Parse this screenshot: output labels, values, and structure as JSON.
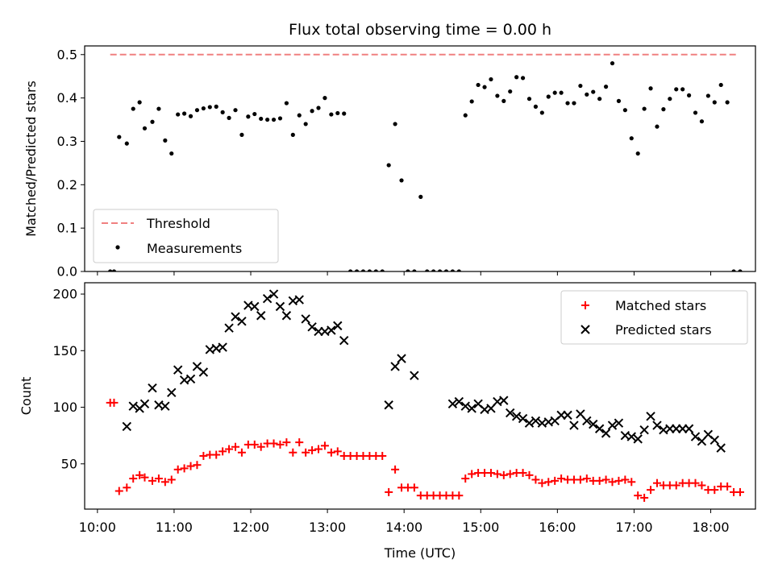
{
  "chart_data": [
    {
      "type": "scatter",
      "title": "Flux total observing time = 0.00 h",
      "xlabel": "",
      "ylabel": "Matched/Predicted stars",
      "ylim": [
        0,
        0.52
      ],
      "xlim": [
        "09:50",
        "18:35"
      ],
      "yticks": [
        0.0,
        0.1,
        0.2,
        0.3,
        0.4,
        0.5
      ],
      "yticklabels": [
        "0.0",
        "0.1",
        "0.2",
        "0.3",
        "0.4",
        "0.5"
      ],
      "grid": false,
      "legend": "lower-left",
      "threshold": {
        "name": "Threshold",
        "value": 0.5,
        "x": [
          "10:10",
          "18:20"
        ],
        "color": "#f08080"
      },
      "series": [
        {
          "name": "Measurements",
          "color": "#000000",
          "marker": "dot",
          "x": [
            "10:10",
            "10:13",
            "10:17",
            "10:23",
            "10:28",
            "10:33",
            "10:37",
            "10:43",
            "10:48",
            "10:53",
            "10:58",
            "11:03",
            "11:08",
            "11:13",
            "11:18",
            "11:23",
            "11:28",
            "11:33",
            "11:38",
            "11:43",
            "11:48",
            "11:53",
            "11:58",
            "12:03",
            "12:08",
            "12:13",
            "12:18",
            "12:23",
            "12:28",
            "12:33",
            "12:38",
            "12:43",
            "12:48",
            "12:53",
            "12:58",
            "13:03",
            "13:08",
            "13:13",
            "13:18",
            "13:23",
            "13:28",
            "13:33",
            "13:38",
            "13:43",
            "13:48",
            "13:53",
            "13:58",
            "14:03",
            "14:08",
            "14:13",
            "14:18",
            "14:23",
            "14:28",
            "14:33",
            "14:38",
            "14:43",
            "14:48",
            "14:53",
            "14:58",
            "15:03",
            "15:08",
            "15:13",
            "15:18",
            "15:23",
            "15:28",
            "15:33",
            "15:38",
            "15:43",
            "15:48",
            "15:53",
            "15:58",
            "16:03",
            "16:08",
            "16:13",
            "16:18",
            "16:23",
            "16:28",
            "16:33",
            "16:38",
            "16:43",
            "16:48",
            "16:53",
            "16:58",
            "17:03",
            "17:08",
            "17:13",
            "17:18",
            "17:23",
            "17:28",
            "17:33",
            "17:38",
            "17:43",
            "17:48",
            "17:53",
            "17:58",
            "18:03",
            "18:08",
            "18:13",
            "18:18",
            "18:23"
          ],
          "y": [
            0,
            0,
            0.31,
            0.295,
            0.375,
            0.39,
            0.33,
            0.345,
            0.375,
            0.302,
            0.272,
            0.362,
            0.364,
            0.358,
            0.372,
            0.376,
            0.379,
            0.38,
            0.367,
            0.354,
            0.372,
            0.315,
            0.357,
            0.363,
            0.352,
            0.35,
            0.35,
            0.353,
            0.388,
            0.315,
            0.36,
            0.34,
            0.37,
            0.377,
            0.4,
            0.362,
            0.365,
            0.364,
            0,
            0,
            0,
            0,
            0,
            0,
            0.245,
            0.34,
            0.21,
            0,
            0,
            0.172,
            0,
            0,
            0,
            0,
            0,
            0,
            0.36,
            0.392,
            0.43,
            0.425,
            0.443,
            0.405,
            0.393,
            0.415,
            0.448,
            0.446,
            0.398,
            0.38,
            0.366,
            0.403,
            0.412,
            0.412,
            0.388,
            0.388,
            0.428,
            0.408,
            0.414,
            0.398,
            0.426,
            0.48,
            0.393,
            0.372,
            0.307,
            0.272,
            0.375,
            0.422,
            0.334,
            0.374,
            0.398,
            0.42,
            0.42,
            0.406,
            0.366,
            0.346,
            0.405,
            0.39,
            0.43,
            0.39,
            0,
            0
          ]
        }
      ]
    },
    {
      "type": "scatter",
      "title": "",
      "xlabel": "Time (UTC)",
      "ylabel": "Count",
      "ylim": [
        10,
        210
      ],
      "xlim": [
        "09:50",
        "18:35"
      ],
      "xticks": [
        "10:00",
        "11:00",
        "12:00",
        "13:00",
        "14:00",
        "15:00",
        "16:00",
        "17:00",
        "18:00"
      ],
      "yticks": [
        50,
        100,
        150,
        200
      ],
      "yticklabels": [
        "50",
        "100",
        "150",
        "200"
      ],
      "grid": false,
      "legend": "upper-right",
      "series": [
        {
          "name": "Matched stars",
          "color": "#ff0000",
          "marker": "plus",
          "x": [
            "10:10",
            "10:13",
            "10:17",
            "10:23",
            "10:28",
            "10:33",
            "10:37",
            "10:43",
            "10:48",
            "10:53",
            "10:58",
            "11:03",
            "11:08",
            "11:13",
            "11:18",
            "11:23",
            "11:28",
            "11:33",
            "11:38",
            "11:43",
            "11:48",
            "11:53",
            "11:58",
            "12:03",
            "12:08",
            "12:13",
            "12:18",
            "12:23",
            "12:28",
            "12:33",
            "12:38",
            "12:43",
            "12:48",
            "12:53",
            "12:58",
            "13:03",
            "13:08",
            "13:13",
            "13:18",
            "13:23",
            "13:28",
            "13:33",
            "13:38",
            "13:43",
            "13:48",
            "13:53",
            "13:58",
            "14:03",
            "14:08",
            "14:13",
            "14:18",
            "14:23",
            "14:28",
            "14:33",
            "14:38",
            "14:43",
            "14:48",
            "14:53",
            "14:58",
            "15:03",
            "15:08",
            "15:13",
            "15:18",
            "15:23",
            "15:28",
            "15:33",
            "15:38",
            "15:43",
            "15:48",
            "15:53",
            "15:58",
            "16:03",
            "16:08",
            "16:13",
            "16:18",
            "16:23",
            "16:28",
            "16:33",
            "16:38",
            "16:43",
            "16:48",
            "16:53",
            "16:58",
            "17:03",
            "17:08",
            "17:13",
            "17:18",
            "17:23",
            "17:28",
            "17:33",
            "17:38",
            "17:43",
            "17:48",
            "17:53",
            "17:58",
            "18:03",
            "18:08",
            "18:13",
            "18:18",
            "18:23"
          ],
          "y": [
            104,
            104,
            26,
            29,
            37,
            40,
            38,
            35,
            37,
            34,
            36,
            45,
            46,
            48,
            49,
            57,
            58,
            58,
            61,
            63,
            65,
            60,
            67,
            67,
            65,
            68,
            68,
            67,
            69,
            60,
            69,
            60,
            62,
            63,
            66,
            60,
            61,
            57,
            57,
            57,
            57,
            57,
            57,
            57,
            25,
            45,
            29,
            29,
            29,
            22,
            22,
            22,
            22,
            22,
            22,
            22,
            37,
            41,
            42,
            42,
            42,
            41,
            40,
            41,
            42,
            42,
            40,
            36,
            33,
            34,
            35,
            37,
            36,
            36,
            36,
            37,
            35,
            35,
            36,
            34,
            35,
            36,
            34,
            22,
            20,
            27,
            33,
            31,
            31,
            31,
            33,
            33,
            33,
            31,
            27,
            27,
            30,
            30,
            25,
            25
          ]
        },
        {
          "name": "Predicted stars",
          "color": "#000000",
          "marker": "cross",
          "x": [
            "10:23",
            "10:28",
            "10:33",
            "10:37",
            "10:43",
            "10:48",
            "10:53",
            "10:58",
            "11:03",
            "11:08",
            "11:13",
            "11:18",
            "11:23",
            "11:28",
            "11:33",
            "11:38",
            "11:43",
            "11:48",
            "11:53",
            "11:58",
            "12:03",
            "12:08",
            "12:13",
            "12:18",
            "12:23",
            "12:28",
            "12:33",
            "12:38",
            "12:43",
            "12:48",
            "12:53",
            "12:58",
            "13:03",
            "13:08",
            "13:13",
            "13:48",
            "13:53",
            "13:58",
            "14:08",
            "14:38",
            "14:43",
            "14:48",
            "14:53",
            "14:58",
            "15:03",
            "15:08",
            "15:13",
            "15:18",
            "15:23",
            "15:28",
            "15:33",
            "15:38",
            "15:43",
            "15:48",
            "15:53",
            "15:58",
            "16:03",
            "16:08",
            "16:13",
            "16:18",
            "16:23",
            "16:28",
            "16:33",
            "16:38",
            "16:43",
            "16:48",
            "16:53",
            "16:58",
            "17:03",
            "17:08",
            "17:13",
            "17:18",
            "17:23",
            "17:28",
            "17:33",
            "17:38",
            "17:43",
            "17:48",
            "17:53",
            "17:58",
            "18:03",
            "18:08"
          ],
          "y": [
            83,
            101,
            99,
            103,
            117,
            102,
            101,
            113,
            133,
            124,
            125,
            136,
            131,
            151,
            152,
            153,
            170,
            180,
            176,
            190,
            189,
            181,
            196,
            200,
            189,
            181,
            194,
            195,
            178,
            171,
            167,
            167,
            168,
            172,
            159,
            102,
            136,
            143,
            128,
            103,
            105,
            101,
            99,
            103,
            98,
            99,
            105,
            106,
            95,
            92,
            90,
            86,
            88,
            86,
            87,
            88,
            93,
            93,
            84,
            94,
            88,
            85,
            81,
            77,
            84,
            86,
            75,
            74,
            72,
            80,
            92,
            84,
            80,
            81,
            81,
            81,
            81,
            74,
            70,
            76,
            71,
            64
          ]
        }
      ]
    }
  ]
}
